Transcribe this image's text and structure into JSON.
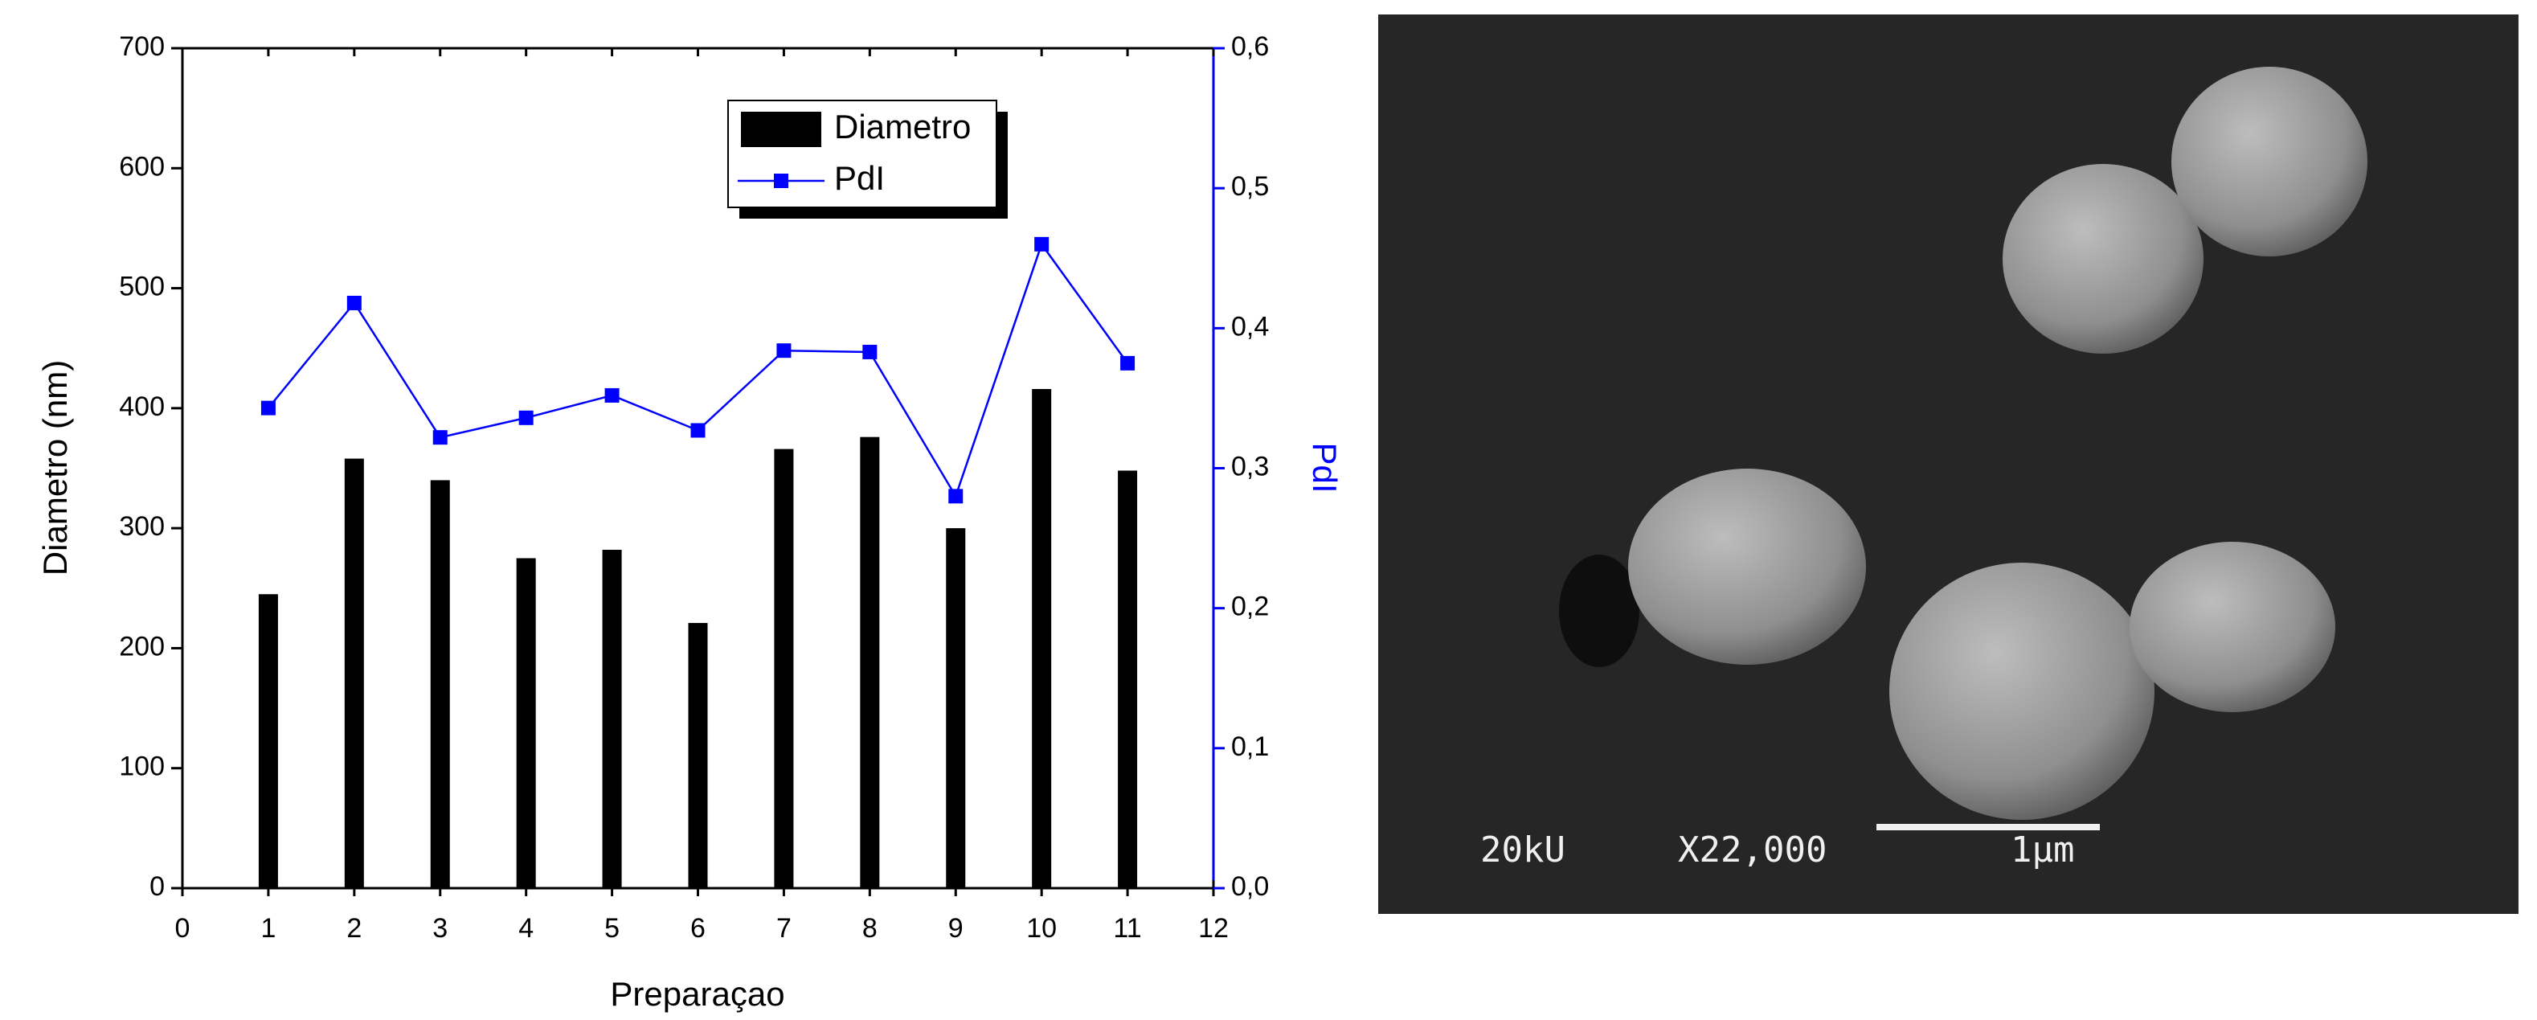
{
  "chart_data": {
    "type": "bar",
    "x_label": "Preparaçao",
    "y_label": "Diametro (nm)",
    "y2_label": "PdI",
    "x": [
      1,
      2,
      3,
      4,
      5,
      6,
      7,
      8,
      9,
      10,
      11
    ],
    "series": [
      {
        "name": "Diametro",
        "type": "bar",
        "color": "#000000",
        "values": [
          245,
          358,
          340,
          275,
          282,
          221,
          366,
          376,
          300,
          416,
          348
        ]
      },
      {
        "name": "PdI",
        "type": "line",
        "axis": "y2",
        "color": "#0000ff",
        "values": [
          0.343,
          0.418,
          0.322,
          0.336,
          0.352,
          0.327,
          0.384,
          0.383,
          0.28,
          0.46,
          0.375
        ]
      }
    ],
    "xlim": [
      0,
      12
    ],
    "xticks": [
      0,
      1,
      2,
      3,
      4,
      5,
      6,
      7,
      8,
      9,
      10,
      11,
      12
    ],
    "ylim": [
      0,
      700
    ],
    "yticks": [
      0,
      100,
      200,
      300,
      400,
      500,
      600,
      700
    ],
    "y2lim": [
      0,
      0.6
    ],
    "y2ticks": [
      {
        "value": 0,
        "label": "0,0"
      },
      {
        "value": 0.1,
        "label": "0,1"
      },
      {
        "value": 0.2,
        "label": "0,2"
      },
      {
        "value": 0.3,
        "label": "0,3"
      },
      {
        "value": 0.4,
        "label": "0,4"
      },
      {
        "value": 0.5,
        "label": "0,5"
      },
      {
        "value": 0.6,
        "label": "0,6"
      }
    ],
    "y2_color": "#0000ff",
    "legend": "top-right"
  },
  "micrograph": {
    "voltage": "20kU",
    "magnification": "X22,000",
    "scale_bar": "1µm"
  }
}
